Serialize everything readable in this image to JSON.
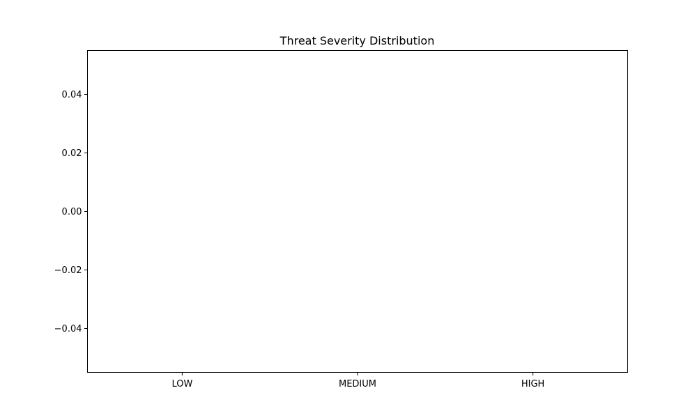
{
  "chart_data": {
    "type": "bar",
    "title": "Threat Severity Distribution",
    "xlabel": "",
    "ylabel": "",
    "categories": [
      "LOW",
      "MEDIUM",
      "HIGH"
    ],
    "values": [
      0,
      0,
      0
    ],
    "ylim": [
      -0.055,
      0.055
    ],
    "yticks": [
      -0.04,
      -0.02,
      0.0,
      0.02,
      0.04
    ],
    "ytick_labels": [
      "−0.04",
      "−0.02",
      "0.00",
      "0.02",
      "0.04"
    ],
    "grid": false,
    "legend": "none",
    "colors": {
      "bar": "#1f77b4",
      "axis": "#000000",
      "background": "#ffffff"
    }
  }
}
